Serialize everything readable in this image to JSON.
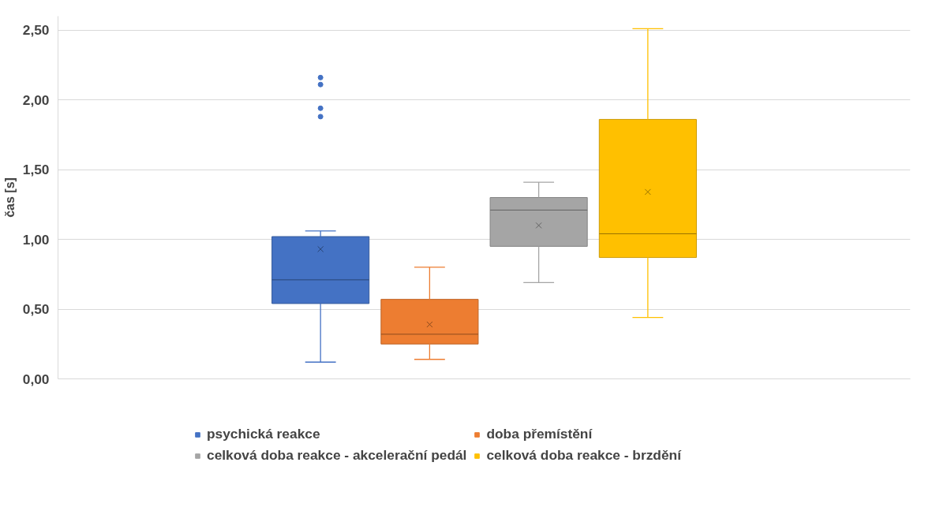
{
  "chart_data": {
    "type": "box",
    "ylabel": "čas [s]",
    "categories": [
      null
    ],
    "ylim": [
      0,
      2.6
    ],
    "yticks": [
      {
        "value": 0,
        "label": "0,00"
      },
      {
        "value": 0.5,
        "label": "0,50"
      },
      {
        "value": 1,
        "label": "1,00"
      },
      {
        "value": 1.5,
        "label": "1,50"
      },
      {
        "value": 2,
        "label": "2,00"
      },
      {
        "value": 2.5,
        "label": "2,50"
      }
    ],
    "grid": "y",
    "legend": "bottom",
    "series": [
      {
        "name": "psychická reakce",
        "color": "#4472c4",
        "boxes": [
          {
            "low": 0.12,
            "q1": 0.54,
            "median": 0.71,
            "q3": 1.02,
            "high": 1.06,
            "mean": 0.93,
            "outliers": [
              1.88,
              1.94,
              2.11,
              2.16
            ]
          }
        ]
      },
      {
        "name": "doba přemístění",
        "color": "#ed7d31",
        "boxes": [
          {
            "low": 0.14,
            "q1": 0.25,
            "median": 0.32,
            "q3": 0.57,
            "high": 0.8,
            "mean": 0.39
          }
        ]
      },
      {
        "name": "celková doba reakce - akcelerační pedál",
        "color": "#a5a5a5",
        "boxes": [
          {
            "low": 0.69,
            "q1": 0.95,
            "median": 1.21,
            "q3": 1.3,
            "high": 1.41,
            "mean": 1.1
          }
        ]
      },
      {
        "name": "celková doba reakce - brzdění",
        "color": "#ffc000",
        "boxes": [
          {
            "low": 0.44,
            "q1": 0.87,
            "median": 1.04,
            "q3": 1.86,
            "high": 2.51,
            "mean": 1.34
          }
        ]
      }
    ]
  }
}
